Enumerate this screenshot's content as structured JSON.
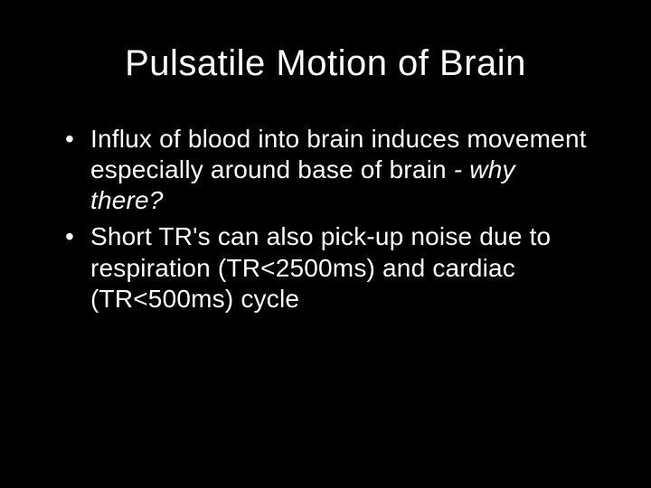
{
  "slide": {
    "background_color": "#000000",
    "text_color": "#ffffff",
    "font_family": "Verdana",
    "title": {
      "text": "Pulsatile Motion of Brain",
      "fontsize": 40,
      "align": "center"
    },
    "bullets": [
      {
        "text_normal": "Influx of blood into brain induces movement especially around base of brain ",
        "text_italic": "- why there?",
        "fontsize": 28
      },
      {
        "text_normal": "Short TR's can also pick-up noise due to respiration (TR<2500ms) and cardiac (TR<500ms) cycle",
        "text_italic": "",
        "fontsize": 28
      }
    ]
  }
}
